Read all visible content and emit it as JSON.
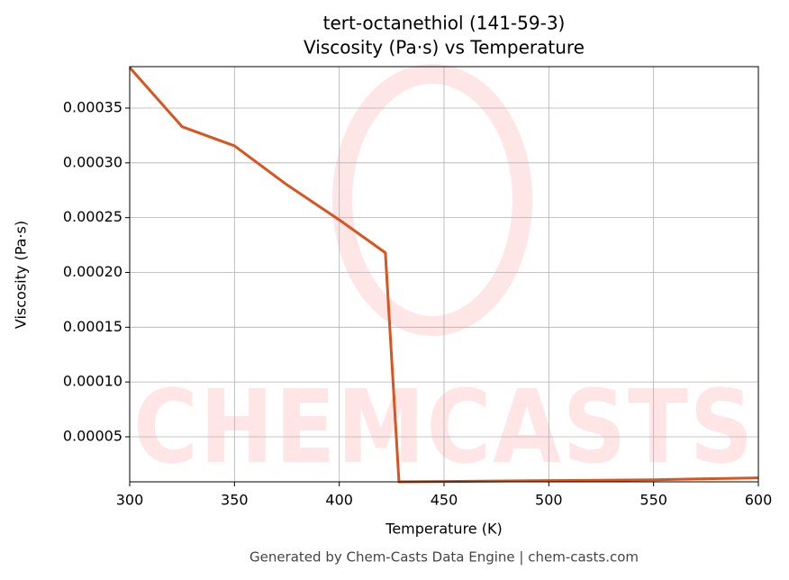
{
  "chart_data": {
    "type": "line",
    "title": "tert-octanethiol (141-59-3)",
    "subtitle": "Viscosity (Pa·s) vs Temperature",
    "x_label": "Temperature (K)",
    "y_label": "Viscosity (Pa·s)",
    "watermark": "CHEMCASTS",
    "footer": "Generated by Chem-Casts Data Engine | chem-casts.com",
    "x": [
      300,
      325,
      350,
      375,
      400,
      422,
      428.5,
      450,
      500,
      550,
      600
    ],
    "series": [
      {
        "name": "Viscosity",
        "color": "#d9541e",
        "values": [
          0.000387,
          0.000333,
          0.0003155,
          0.00028,
          0.000248,
          0.000218,
          8.9e-06,
          9.2e-06,
          1e-05,
          1.08e-05,
          1.25e-05
        ]
      }
    ],
    "xlim": [
      300,
      600
    ],
    "xticks": [
      300,
      350,
      400,
      450,
      500,
      550,
      600
    ],
    "ylim": [
      8.9e-06,
      0.0003878
    ],
    "yticks": [
      5e-05,
      {
        "value": 0.0001,
        "label": "0.00010"
      },
      0.00015,
      {
        "value": 0.0002,
        "label": "0.00020"
      },
      0.00025,
      {
        "value": 0.0003,
        "label": "0.00030"
      },
      0.00035
    ],
    "grid": true
  }
}
